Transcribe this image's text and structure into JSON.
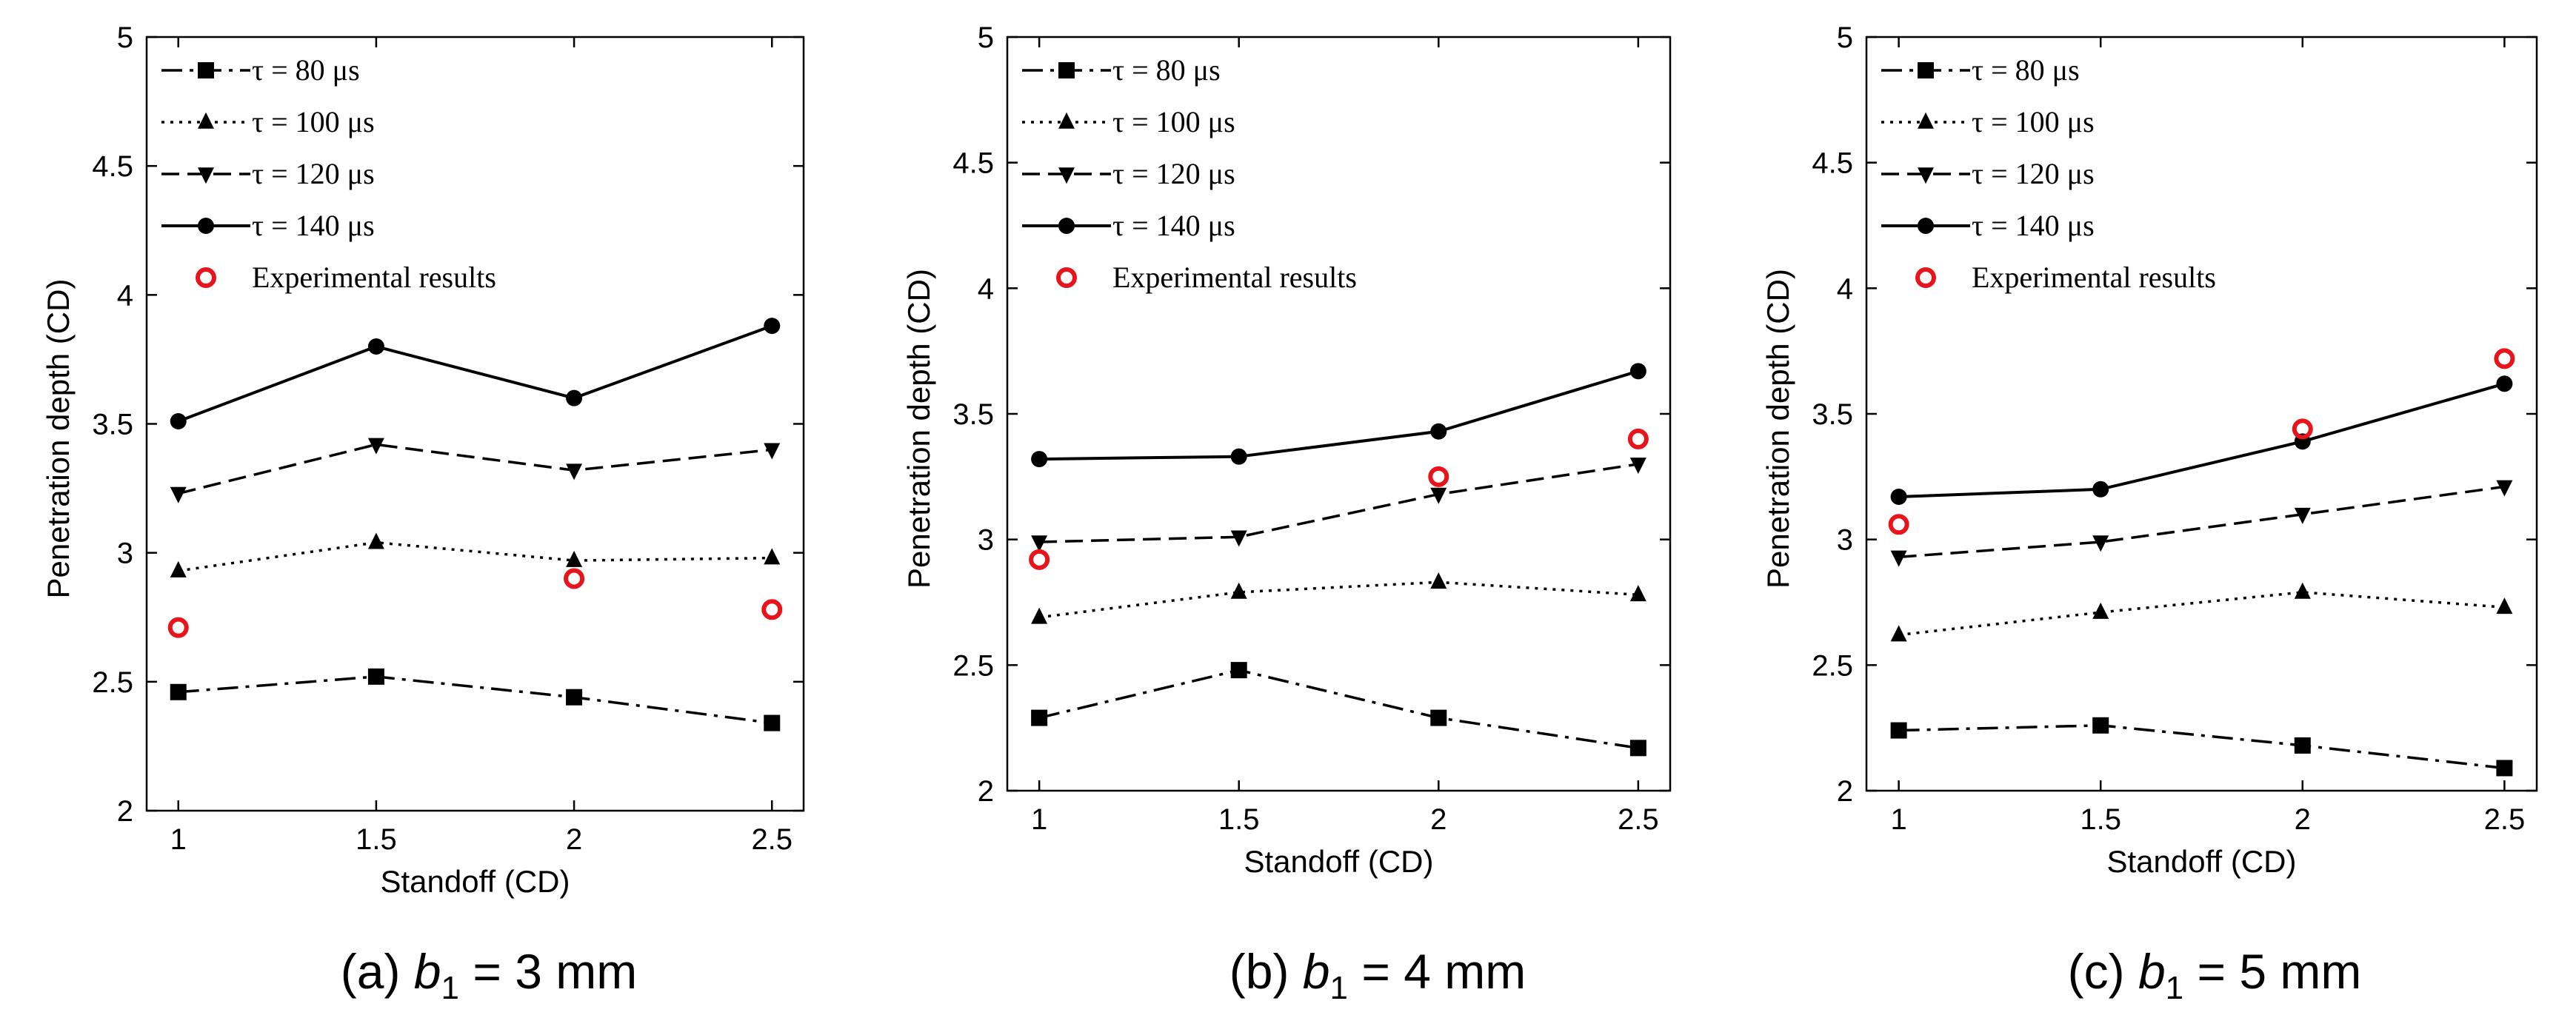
{
  "figure": {
    "panels": [
      {
        "caption_prefix": "(a) ",
        "caption_var": "b",
        "caption_sub": "1",
        "caption_suffix": " = 3 mm"
      },
      {
        "caption_prefix": "(b) ",
        "caption_var": "b",
        "caption_sub": "1",
        "caption_suffix": " = 4 mm"
      },
      {
        "caption_prefix": "(c) ",
        "caption_var": "b",
        "caption_sub": "1",
        "caption_suffix": " = 5 mm"
      }
    ]
  },
  "chart_data": [
    {
      "type": "line",
      "xlabel": "Standoff (CD)",
      "ylabel": "Penetration depth (CD)",
      "x": [
        1,
        1.5,
        2,
        2.5
      ],
      "xticks": [
        "1",
        "1.5",
        "2",
        "2.5"
      ],
      "yticks": [
        "2",
        "2.5",
        "3",
        "3.5",
        "4",
        "4.5",
        "5"
      ],
      "xlim": [
        0.92,
        2.58
      ],
      "ylim": [
        2,
        5
      ],
      "grid": false,
      "legend_position": "top-left",
      "series": [
        {
          "name": "τ = 80 μs",
          "style": "dashdot",
          "marker": "square",
          "values": [
            2.46,
            2.52,
            2.44,
            2.34
          ]
        },
        {
          "name": "τ = 100 μs",
          "style": "dotted",
          "marker": "triangle-up",
          "values": [
            2.93,
            3.04,
            2.97,
            2.98
          ]
        },
        {
          "name": "τ = 120 μs",
          "style": "dashed",
          "marker": "triangle-down",
          "values": [
            3.23,
            3.42,
            3.32,
            3.4
          ]
        },
        {
          "name": "τ = 140 μs",
          "style": "solid",
          "marker": "circle",
          "values": [
            3.51,
            3.8,
            3.6,
            3.88
          ]
        }
      ],
      "experimental": {
        "name": "Experimental results",
        "color": "#e8141b",
        "x": [
          1,
          2,
          2.5
        ],
        "values": [
          2.71,
          2.9,
          2.78
        ]
      }
    },
    {
      "type": "line",
      "xlabel": "Standoff (CD)",
      "ylabel": "Penetration depth (CD)",
      "x": [
        1,
        1.5,
        2,
        2.5
      ],
      "xticks": [
        "1",
        "1.5",
        "2",
        "2.5"
      ],
      "yticks": [
        "2",
        "2.5",
        "3",
        "3.5",
        "4",
        "4.5",
        "5"
      ],
      "xlim": [
        0.92,
        2.58
      ],
      "ylim": [
        2,
        5
      ],
      "grid": false,
      "legend_position": "top-left",
      "series": [
        {
          "name": "τ = 80 μs",
          "style": "dashdot",
          "marker": "square",
          "values": [
            2.29,
            2.48,
            2.29,
            2.17
          ]
        },
        {
          "name": "τ = 100 μs",
          "style": "dotted",
          "marker": "triangle-up",
          "values": [
            2.69,
            2.79,
            2.83,
            2.78
          ]
        },
        {
          "name": "τ = 120 μs",
          "style": "dashed",
          "marker": "triangle-down",
          "values": [
            2.99,
            3.01,
            3.18,
            3.3
          ]
        },
        {
          "name": "τ = 140 μs",
          "style": "solid",
          "marker": "circle",
          "values": [
            3.32,
            3.33,
            3.43,
            3.67
          ]
        }
      ],
      "experimental": {
        "name": "Experimental results",
        "color": "#e8141b",
        "x": [
          1,
          2,
          2.5
        ],
        "values": [
          2.92,
          3.25,
          3.4
        ]
      }
    },
    {
      "type": "line",
      "xlabel": "Standoff (CD)",
      "ylabel": "Penetration depth (CD)",
      "x": [
        1,
        1.5,
        2,
        2.5
      ],
      "xticks": [
        "1",
        "1.5",
        "2",
        "2.5"
      ],
      "yticks": [
        "2",
        "2.5",
        "3",
        "3.5",
        "4",
        "4.5",
        "5"
      ],
      "xlim": [
        0.92,
        2.58
      ],
      "ylim": [
        2,
        5
      ],
      "grid": false,
      "legend_position": "top-left",
      "series": [
        {
          "name": "τ = 80 μs",
          "style": "dashdot",
          "marker": "square",
          "values": [
            2.24,
            2.26,
            2.18,
            2.09
          ]
        },
        {
          "name": "τ = 100 μs",
          "style": "dotted",
          "marker": "triangle-up",
          "values": [
            2.62,
            2.71,
            2.79,
            2.73
          ]
        },
        {
          "name": "τ = 120 μs",
          "style": "dashed",
          "marker": "triangle-down",
          "values": [
            2.93,
            2.99,
            3.1,
            3.21
          ]
        },
        {
          "name": "τ = 140 μs",
          "style": "solid",
          "marker": "circle",
          "values": [
            3.17,
            3.2,
            3.39,
            3.62
          ]
        }
      ],
      "experimental": {
        "name": "Experimental results",
        "color": "#e8141b",
        "x": [
          1,
          2,
          2.5
        ],
        "values": [
          3.06,
          3.44,
          3.72
        ]
      }
    }
  ]
}
